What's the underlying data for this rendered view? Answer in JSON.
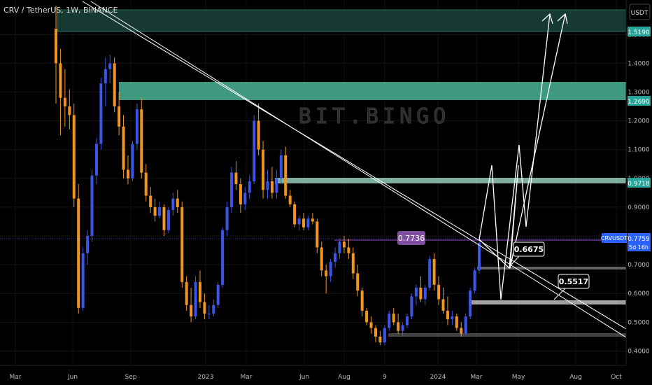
{
  "header": {
    "symbol_title": "CRV / TetherUS, 1W, BINANCE",
    "currency_button": "USDT"
  },
  "watermark": "BIT.BINGO",
  "colors": {
    "background": "#000000",
    "up_candle": "#3a56e6",
    "down_candle": "#f0961e",
    "zone_fill": "#4fbfa0",
    "level_green": "#26a69a",
    "current_price": "#2962ff",
    "purple_level": "#7b3fa0",
    "gray_level": "#8c8c8c",
    "projection": "#ffffff"
  },
  "price_axis": {
    "ticks": [
      "1.5000",
      "1.4000",
      "1.3000",
      "1.2000",
      "1.1000",
      "1.0000",
      "0.9000",
      "0.8000",
      "0.7000",
      "0.6000",
      "0.5000",
      "0.4000"
    ]
  },
  "time_axis": {
    "ticks": [
      "Mar",
      "Jun",
      "Sep",
      "2023",
      "Mar",
      "Jun",
      "Aug",
      "9",
      "2024",
      "Mar",
      "May",
      "Aug",
      "Oct"
    ]
  },
  "levels": {
    "zone_top": "1.5190",
    "zone_mid": "1.2690",
    "zone_low": "0.9718",
    "current_symbol": "CRVUSDT",
    "current_price": "0.7759",
    "countdown": "5d 16h",
    "support_1": "0.6675",
    "support_2": "0.5517",
    "purple_level": "0.7736"
  },
  "chart_data": {
    "type": "candlestick",
    "title": "CRV / TetherUS, 1W, BINANCE",
    "y_range": [
      0.35,
      1.62
    ],
    "x_labels": [
      "Mar",
      "Jun",
      "Sep",
      "2023",
      "Mar",
      "Jun",
      "Aug",
      "9",
      "2024",
      "Mar",
      "May",
      "Aug",
      "Oct"
    ],
    "candles": [
      {
        "o": 1.52,
        "h": 1.6,
        "l": 1.26,
        "c": 1.4
      },
      {
        "o": 1.4,
        "h": 1.45,
        "l": 1.15,
        "c": 1.28
      },
      {
        "o": 1.28,
        "h": 1.38,
        "l": 1.18,
        "c": 1.25
      },
      {
        "o": 1.25,
        "h": 1.31,
        "l": 1.17,
        "c": 1.22
      },
      {
        "o": 1.22,
        "h": 1.26,
        "l": 0.9,
        "c": 0.93
      },
      {
        "o": 0.93,
        "h": 0.98,
        "l": 0.53,
        "c": 0.55
      },
      {
        "o": 0.55,
        "h": 0.76,
        "l": 0.54,
        "c": 0.74
      },
      {
        "o": 0.74,
        "h": 0.82,
        "l": 0.7,
        "c": 0.8
      },
      {
        "o": 0.8,
        "h": 1.03,
        "l": 0.78,
        "c": 1.01
      },
      {
        "o": 1.01,
        "h": 1.14,
        "l": 0.98,
        "c": 1.12
      },
      {
        "o": 1.12,
        "h": 1.35,
        "l": 1.1,
        "c": 1.33
      },
      {
        "o": 1.33,
        "h": 1.42,
        "l": 1.25,
        "c": 1.38
      },
      {
        "o": 1.38,
        "h": 1.43,
        "l": 1.33,
        "c": 1.4
      },
      {
        "o": 1.4,
        "h": 1.42,
        "l": 1.23,
        "c": 1.25
      },
      {
        "o": 1.25,
        "h": 1.3,
        "l": 1.15,
        "c": 1.18
      },
      {
        "o": 1.18,
        "h": 1.22,
        "l": 1.0,
        "c": 1.03
      },
      {
        "o": 1.03,
        "h": 1.08,
        "l": 0.98,
        "c": 1.0
      },
      {
        "o": 1.0,
        "h": 1.13,
        "l": 0.99,
        "c": 1.12
      },
      {
        "o": 1.12,
        "h": 1.26,
        "l": 1.1,
        "c": 1.24
      },
      {
        "o": 1.24,
        "h": 1.28,
        "l": 1.0,
        "c": 1.02
      },
      {
        "o": 1.02,
        "h": 1.05,
        "l": 0.92,
        "c": 0.94
      },
      {
        "o": 0.94,
        "h": 0.97,
        "l": 0.88,
        "c": 0.9
      },
      {
        "o": 0.9,
        "h": 0.93,
        "l": 0.85,
        "c": 0.87
      },
      {
        "o": 0.87,
        "h": 0.92,
        "l": 0.86,
        "c": 0.9
      },
      {
        "o": 0.9,
        "h": 0.91,
        "l": 0.8,
        "c": 0.82
      },
      {
        "o": 0.82,
        "h": 0.9,
        "l": 0.81,
        "c": 0.89
      },
      {
        "o": 0.89,
        "h": 0.95,
        "l": 0.87,
        "c": 0.93
      },
      {
        "o": 0.93,
        "h": 0.96,
        "l": 0.88,
        "c": 0.9
      },
      {
        "o": 0.9,
        "h": 0.92,
        "l": 0.62,
        "c": 0.64
      },
      {
        "o": 0.64,
        "h": 0.66,
        "l": 0.54,
        "c": 0.56
      },
      {
        "o": 0.56,
        "h": 0.62,
        "l": 0.5,
        "c": 0.52
      },
      {
        "o": 0.52,
        "h": 0.66,
        "l": 0.51,
        "c": 0.64
      },
      {
        "o": 0.64,
        "h": 0.68,
        "l": 0.55,
        "c": 0.57
      },
      {
        "o": 0.57,
        "h": 0.6,
        "l": 0.51,
        "c": 0.53
      },
      {
        "o": 0.53,
        "h": 0.56,
        "l": 0.51,
        "c": 0.53
      },
      {
        "o": 0.53,
        "h": 0.58,
        "l": 0.52,
        "c": 0.56
      },
      {
        "o": 0.56,
        "h": 0.64,
        "l": 0.55,
        "c": 0.63
      },
      {
        "o": 0.63,
        "h": 0.83,
        "l": 0.62,
        "c": 0.82
      },
      {
        "o": 0.82,
        "h": 0.92,
        "l": 0.8,
        "c": 0.9
      },
      {
        "o": 0.9,
        "h": 1.04,
        "l": 0.88,
        "c": 1.02
      },
      {
        "o": 1.02,
        "h": 1.06,
        "l": 0.96,
        "c": 0.98
      },
      {
        "o": 0.98,
        "h": 1.0,
        "l": 0.88,
        "c": 0.91
      },
      {
        "o": 0.91,
        "h": 0.97,
        "l": 0.89,
        "c": 0.95
      },
      {
        "o": 0.95,
        "h": 1.01,
        "l": 0.93,
        "c": 0.99
      },
      {
        "o": 0.99,
        "h": 1.22,
        "l": 0.98,
        "c": 1.2
      },
      {
        "o": 1.2,
        "h": 1.26,
        "l": 1.08,
        "c": 1.1
      },
      {
        "o": 1.1,
        "h": 1.13,
        "l": 0.93,
        "c": 0.96
      },
      {
        "o": 0.96,
        "h": 1.03,
        "l": 0.93,
        "c": 0.99
      },
      {
        "o": 0.99,
        "h": 1.04,
        "l": 0.93,
        "c": 0.95
      },
      {
        "o": 0.95,
        "h": 1.03,
        "l": 0.93,
        "c": 1.0
      },
      {
        "o": 1.0,
        "h": 1.1,
        "l": 0.98,
        "c": 1.08
      },
      {
        "o": 1.08,
        "h": 1.11,
        "l": 0.93,
        "c": 0.94
      },
      {
        "o": 0.94,
        "h": 0.96,
        "l": 0.9,
        "c": 0.91
      },
      {
        "o": 0.91,
        "h": 0.92,
        "l": 0.83,
        "c": 0.84
      },
      {
        "o": 0.84,
        "h": 0.87,
        "l": 0.82,
        "c": 0.86
      },
      {
        "o": 0.86,
        "h": 0.88,
        "l": 0.82,
        "c": 0.83
      },
      {
        "o": 0.83,
        "h": 0.87,
        "l": 0.82,
        "c": 0.86
      },
      {
        "o": 0.86,
        "h": 0.88,
        "l": 0.84,
        "c": 0.85
      },
      {
        "o": 0.85,
        "h": 0.86,
        "l": 0.74,
        "c": 0.76
      },
      {
        "o": 0.76,
        "h": 0.78,
        "l": 0.66,
        "c": 0.68
      },
      {
        "o": 0.68,
        "h": 0.7,
        "l": 0.6,
        "c": 0.66
      },
      {
        "o": 0.66,
        "h": 0.72,
        "l": 0.64,
        "c": 0.71
      },
      {
        "o": 0.71,
        "h": 0.76,
        "l": 0.69,
        "c": 0.74
      },
      {
        "o": 0.74,
        "h": 0.79,
        "l": 0.72,
        "c": 0.78
      },
      {
        "o": 0.78,
        "h": 0.8,
        "l": 0.74,
        "c": 0.76
      },
      {
        "o": 0.76,
        "h": 0.79,
        "l": 0.72,
        "c": 0.74
      },
      {
        "o": 0.74,
        "h": 0.76,
        "l": 0.65,
        "c": 0.67
      },
      {
        "o": 0.67,
        "h": 0.7,
        "l": 0.59,
        "c": 0.61
      },
      {
        "o": 0.61,
        "h": 0.62,
        "l": 0.52,
        "c": 0.54
      },
      {
        "o": 0.54,
        "h": 0.55,
        "l": 0.49,
        "c": 0.5
      },
      {
        "o": 0.5,
        "h": 0.52,
        "l": 0.46,
        "c": 0.48
      },
      {
        "o": 0.48,
        "h": 0.49,
        "l": 0.43,
        "c": 0.45
      },
      {
        "o": 0.45,
        "h": 0.47,
        "l": 0.42,
        "c": 0.43
      },
      {
        "o": 0.43,
        "h": 0.49,
        "l": 0.42,
        "c": 0.48
      },
      {
        "o": 0.48,
        "h": 0.54,
        "l": 0.47,
        "c": 0.53
      },
      {
        "o": 0.53,
        "h": 0.55,
        "l": 0.49,
        "c": 0.5
      },
      {
        "o": 0.5,
        "h": 0.53,
        "l": 0.46,
        "c": 0.47
      },
      {
        "o": 0.47,
        "h": 0.5,
        "l": 0.45,
        "c": 0.49
      },
      {
        "o": 0.49,
        "h": 0.53,
        "l": 0.48,
        "c": 0.52
      },
      {
        "o": 0.52,
        "h": 0.6,
        "l": 0.51,
        "c": 0.59
      },
      {
        "o": 0.59,
        "h": 0.63,
        "l": 0.56,
        "c": 0.62
      },
      {
        "o": 0.62,
        "h": 0.66,
        "l": 0.57,
        "c": 0.58
      },
      {
        "o": 0.58,
        "h": 0.63,
        "l": 0.56,
        "c": 0.62
      },
      {
        "o": 0.62,
        "h": 0.73,
        "l": 0.61,
        "c": 0.72
      },
      {
        "o": 0.72,
        "h": 0.74,
        "l": 0.61,
        "c": 0.63
      },
      {
        "o": 0.63,
        "h": 0.66,
        "l": 0.56,
        "c": 0.58
      },
      {
        "o": 0.58,
        "h": 0.62,
        "l": 0.53,
        "c": 0.54
      },
      {
        "o": 0.54,
        "h": 0.59,
        "l": 0.49,
        "c": 0.51
      },
      {
        "o": 0.51,
        "h": 0.54,
        "l": 0.49,
        "c": 0.52
      },
      {
        "o": 0.52,
        "h": 0.53,
        "l": 0.47,
        "c": 0.48
      },
      {
        "o": 0.48,
        "h": 0.5,
        "l": 0.45,
        "c": 0.46
      },
      {
        "o": 0.46,
        "h": 0.53,
        "l": 0.45,
        "c": 0.52
      },
      {
        "o": 0.52,
        "h": 0.62,
        "l": 0.51,
        "c": 0.61
      },
      {
        "o": 0.61,
        "h": 0.69,
        "l": 0.6,
        "c": 0.68
      },
      {
        "o": 0.68,
        "h": 0.78,
        "l": 0.67,
        "c": 0.7759
      }
    ]
  }
}
